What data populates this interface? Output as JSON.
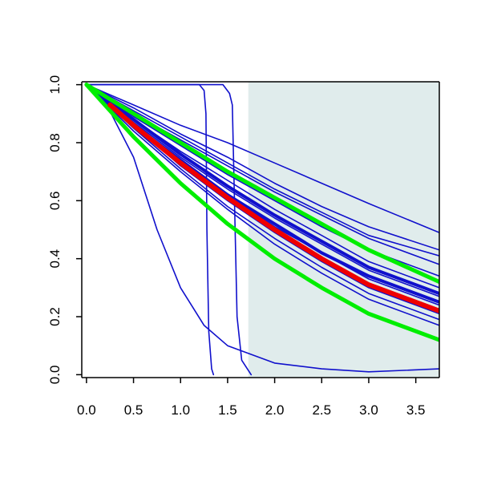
{
  "chart_data": {
    "type": "line",
    "title": "",
    "xlabel": "",
    "ylabel": "",
    "xlim": [
      -0.05,
      3.75
    ],
    "ylim": [
      -0.01,
      1.01
    ],
    "x_ticks": [
      "0.0",
      "0.5",
      "1.0",
      "1.5",
      "2.0",
      "2.5",
      "3.0",
      "3.5"
    ],
    "y_ticks": [
      "0.0",
      "0.2",
      "0.4",
      "0.6",
      "0.8",
      "1.0"
    ],
    "shaded_region": {
      "x_from": 1.72,
      "x_to": 3.75,
      "color": "#e0ecec"
    },
    "colors": {
      "blue": "#1010cc",
      "red": "#ee0000",
      "green": "#00ee00"
    },
    "series": [
      {
        "color": "blue",
        "width": 1.6,
        "points": [
          [
            0,
            1
          ],
          [
            0.2,
            0.94
          ],
          [
            0.5,
            0.75
          ],
          [
            0.75,
            0.5
          ],
          [
            1.0,
            0.3
          ],
          [
            1.25,
            0.17
          ],
          [
            1.5,
            0.1
          ],
          [
            2.0,
            0.04
          ],
          [
            2.5,
            0.02
          ],
          [
            3.0,
            0.01
          ],
          [
            3.75,
            0.02
          ]
        ]
      },
      {
        "color": "blue",
        "width": 1.6,
        "points": [
          [
            0,
            1
          ],
          [
            1.2,
            1.0
          ],
          [
            1.25,
            0.98
          ],
          [
            1.27,
            0.9
          ],
          [
            1.28,
            0.5
          ],
          [
            1.3,
            0.15
          ],
          [
            1.33,
            0.02
          ],
          [
            1.35,
            0.0
          ]
        ]
      },
      {
        "color": "blue",
        "width": 1.6,
        "points": [
          [
            0,
            1
          ],
          [
            1.45,
            1.0
          ],
          [
            1.52,
            0.97
          ],
          [
            1.55,
            0.93
          ],
          [
            1.58,
            0.5
          ],
          [
            1.6,
            0.2
          ],
          [
            1.65,
            0.05
          ],
          [
            1.75,
            0.0
          ]
        ]
      },
      {
        "color": "blue",
        "width": 1.6,
        "points": [
          [
            0,
            1
          ],
          [
            0.5,
            0.93
          ],
          [
            1.0,
            0.86
          ],
          [
            1.5,
            0.8
          ],
          [
            2.0,
            0.73
          ],
          [
            2.5,
            0.66
          ],
          [
            3.0,
            0.59
          ],
          [
            3.75,
            0.49
          ]
        ]
      },
      {
        "color": "blue",
        "width": 1.6,
        "points": [
          [
            0,
            1
          ],
          [
            0.5,
            0.92
          ],
          [
            1.0,
            0.83
          ],
          [
            1.5,
            0.75
          ],
          [
            2.0,
            0.66
          ],
          [
            2.5,
            0.58
          ],
          [
            3.0,
            0.51
          ],
          [
            3.75,
            0.43
          ]
        ]
      },
      {
        "color": "blue",
        "width": 1.6,
        "points": [
          [
            0,
            1
          ],
          [
            0.5,
            0.91
          ],
          [
            1.0,
            0.82
          ],
          [
            1.5,
            0.73
          ],
          [
            2.0,
            0.64
          ],
          [
            2.5,
            0.56
          ],
          [
            3.0,
            0.48
          ],
          [
            3.75,
            0.41
          ]
        ]
      },
      {
        "color": "blue",
        "width": 1.6,
        "points": [
          [
            0,
            1
          ],
          [
            0.5,
            0.9
          ],
          [
            1.0,
            0.81
          ],
          [
            1.5,
            0.72
          ],
          [
            2.0,
            0.63
          ],
          [
            2.5,
            0.55
          ],
          [
            3.0,
            0.47
          ],
          [
            3.75,
            0.38
          ]
        ]
      },
      {
        "color": "blue",
        "width": 1.6,
        "points": [
          [
            0,
            1
          ],
          [
            0.5,
            0.89
          ],
          [
            1.0,
            0.79
          ],
          [
            1.5,
            0.69
          ],
          [
            2.0,
            0.6
          ],
          [
            2.5,
            0.51
          ],
          [
            3.0,
            0.43
          ],
          [
            3.75,
            0.34
          ]
        ]
      },
      {
        "color": "blue",
        "width": 1.6,
        "points": [
          [
            0,
            1
          ],
          [
            0.5,
            0.88
          ],
          [
            1.0,
            0.77
          ],
          [
            1.5,
            0.67
          ],
          [
            2.0,
            0.57
          ],
          [
            2.5,
            0.48
          ],
          [
            3.0,
            0.39
          ],
          [
            3.75,
            0.3
          ]
        ]
      },
      {
        "color": "blue",
        "width": 1.6,
        "points": [
          [
            0,
            1
          ],
          [
            0.5,
            0.87
          ],
          [
            1.0,
            0.75
          ],
          [
            1.5,
            0.64
          ],
          [
            2.0,
            0.54
          ],
          [
            2.5,
            0.45
          ],
          [
            3.0,
            0.36
          ],
          [
            3.75,
            0.27
          ]
        ]
      },
      {
        "color": "blue",
        "width": 1.6,
        "points": [
          [
            0,
            1
          ],
          [
            0.5,
            0.86
          ],
          [
            1.0,
            0.73
          ],
          [
            1.5,
            0.62
          ],
          [
            2.0,
            0.51
          ],
          [
            2.5,
            0.42
          ],
          [
            3.0,
            0.33
          ],
          [
            3.75,
            0.24
          ]
        ]
      },
      {
        "color": "blue",
        "width": 1.6,
        "points": [
          [
            0,
            1
          ],
          [
            0.5,
            0.86
          ],
          [
            1.0,
            0.72
          ],
          [
            1.5,
            0.6
          ],
          [
            2.0,
            0.49
          ],
          [
            2.5,
            0.39
          ],
          [
            3.0,
            0.3
          ],
          [
            3.75,
            0.21
          ]
        ]
      },
      {
        "color": "blue",
        "width": 1.6,
        "points": [
          [
            0,
            1
          ],
          [
            0.5,
            0.85
          ],
          [
            1.0,
            0.71
          ],
          [
            1.5,
            0.58
          ],
          [
            2.0,
            0.47
          ],
          [
            2.5,
            0.37
          ],
          [
            3.0,
            0.28
          ],
          [
            3.75,
            0.19
          ]
        ]
      },
      {
        "color": "blue",
        "width": 1.6,
        "points": [
          [
            0,
            1
          ],
          [
            0.5,
            0.84
          ],
          [
            1.0,
            0.7
          ],
          [
            1.5,
            0.57
          ],
          [
            2.0,
            0.45
          ],
          [
            2.5,
            0.35
          ],
          [
            3.0,
            0.26
          ],
          [
            3.75,
            0.17
          ]
        ]
      },
      {
        "color": "blue",
        "width": 4,
        "points": [
          [
            0,
            1
          ],
          [
            0.5,
            0.88
          ],
          [
            1.0,
            0.76
          ],
          [
            1.5,
            0.65
          ],
          [
            2.0,
            0.55
          ],
          [
            2.5,
            0.46
          ],
          [
            3.0,
            0.37
          ],
          [
            3.75,
            0.28
          ]
        ]
      },
      {
        "color": "blue",
        "width": 4,
        "points": [
          [
            0,
            1
          ],
          [
            0.5,
            0.86
          ],
          [
            1.0,
            0.74
          ],
          [
            1.5,
            0.62
          ],
          [
            2.0,
            0.52
          ],
          [
            2.5,
            0.42
          ],
          [
            3.0,
            0.34
          ],
          [
            3.75,
            0.25
          ]
        ]
      },
      {
        "color": "green",
        "width": 5,
        "points": [
          [
            0,
            1
          ],
          [
            0.5,
            0.9
          ],
          [
            1.0,
            0.8
          ],
          [
            1.5,
            0.7
          ],
          [
            2.0,
            0.61
          ],
          [
            2.5,
            0.52
          ],
          [
            3.0,
            0.43
          ],
          [
            3.75,
            0.32
          ]
        ]
      },
      {
        "color": "green",
        "width": 5,
        "points": [
          [
            0,
            1
          ],
          [
            0.5,
            0.82
          ],
          [
            1.0,
            0.66
          ],
          [
            1.5,
            0.52
          ],
          [
            2.0,
            0.4
          ],
          [
            2.5,
            0.3
          ],
          [
            3.0,
            0.21
          ],
          [
            3.75,
            0.12
          ]
        ]
      },
      {
        "color": "red",
        "width": 6,
        "points": [
          [
            0.25,
            0.93
          ],
          [
            0.5,
            0.86
          ],
          [
            1.0,
            0.73
          ],
          [
            1.5,
            0.61
          ],
          [
            2.0,
            0.5
          ],
          [
            2.5,
            0.4
          ],
          [
            3.0,
            0.31
          ],
          [
            3.75,
            0.22
          ]
        ]
      }
    ]
  }
}
